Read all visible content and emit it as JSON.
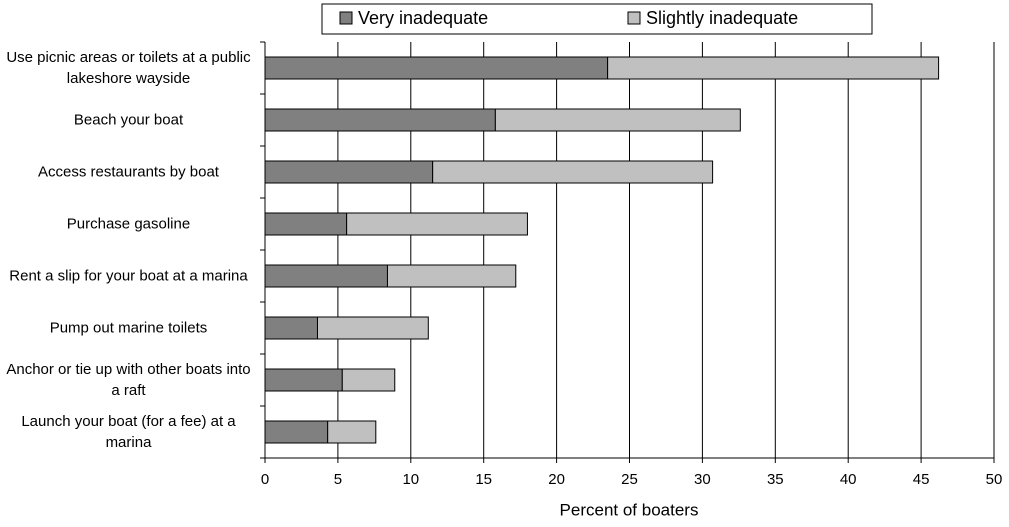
{
  "chart_data": {
    "type": "stacked_barh",
    "xlabel": "Percent of boaters",
    "categories": [
      "Use picnic areas or toilets at a public lakeshore wayside",
      "Beach your boat",
      "Access restaurants by boat",
      "Purchase gasoline",
      "Rent a slip for your boat at a marina",
      "Pump out marine toilets",
      "Anchor or tie up with other boats into a raft",
      "Launch your boat (for a fee) at a marina"
    ],
    "series": [
      {
        "name": "Very inadequate",
        "color": "#808080",
        "values": [
          23.5,
          15.8,
          11.5,
          5.6,
          8.4,
          3.6,
          5.3,
          4.3
        ]
      },
      {
        "name": "Slightly inadequate",
        "color": "#c0c0c0",
        "values": [
          22.7,
          16.8,
          19.2,
          12.4,
          8.8,
          7.6,
          3.6,
          3.3
        ]
      }
    ],
    "xlim": [
      0,
      50
    ],
    "xticks": [
      0,
      5,
      10,
      15,
      20,
      25,
      30,
      35,
      40,
      45,
      50
    ],
    "grid": true
  }
}
